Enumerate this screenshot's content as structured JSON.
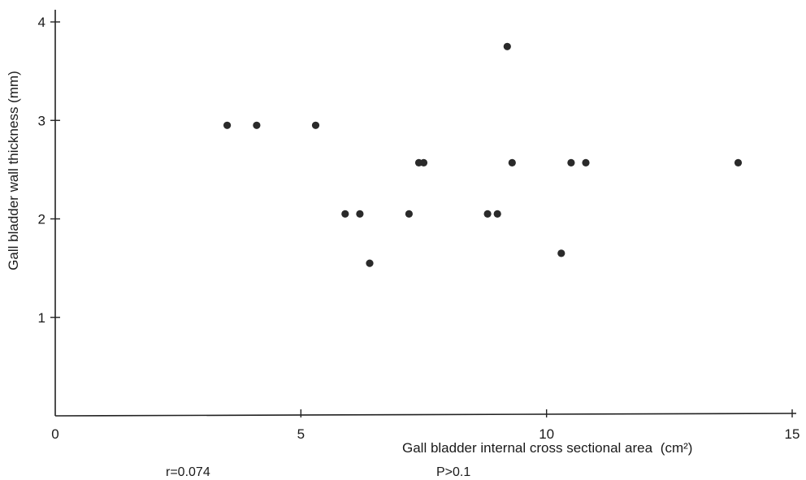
{
  "chart_data": {
    "type": "scatter",
    "title": "",
    "xlabel": "Gall bladder internal cross sectional area",
    "xlabel_unit": "(cm²)",
    "ylabel": "Gall bladder wall thickness (mm)",
    "xlim": [
      0,
      15
    ],
    "ylim": [
      0,
      4
    ],
    "xticks": [
      "0",
      "5",
      "10",
      "15"
    ],
    "yticks": [
      "1",
      "2",
      "3",
      "4"
    ],
    "grid": false,
    "legend": "none",
    "marker_color": "#2a2a2a",
    "points": [
      {
        "x": 3.5,
        "y": 2.95
      },
      {
        "x": 4.1,
        "y": 2.95
      },
      {
        "x": 5.3,
        "y": 2.95
      },
      {
        "x": 5.9,
        "y": 2.05
      },
      {
        "x": 6.2,
        "y": 2.05
      },
      {
        "x": 6.4,
        "y": 1.55
      },
      {
        "x": 7.2,
        "y": 2.05
      },
      {
        "x": 7.4,
        "y": 2.57
      },
      {
        "x": 7.5,
        "y": 2.57
      },
      {
        "x": 8.8,
        "y": 2.05
      },
      {
        "x": 9.0,
        "y": 2.05
      },
      {
        "x": 9.2,
        "y": 3.75
      },
      {
        "x": 9.3,
        "y": 2.57
      },
      {
        "x": 10.3,
        "y": 1.65
      },
      {
        "x": 10.5,
        "y": 2.57
      },
      {
        "x": 10.8,
        "y": 2.57
      },
      {
        "x": 13.9,
        "y": 2.57
      }
    ],
    "annotations": [
      "r=0.074",
      "P>0.1"
    ]
  }
}
